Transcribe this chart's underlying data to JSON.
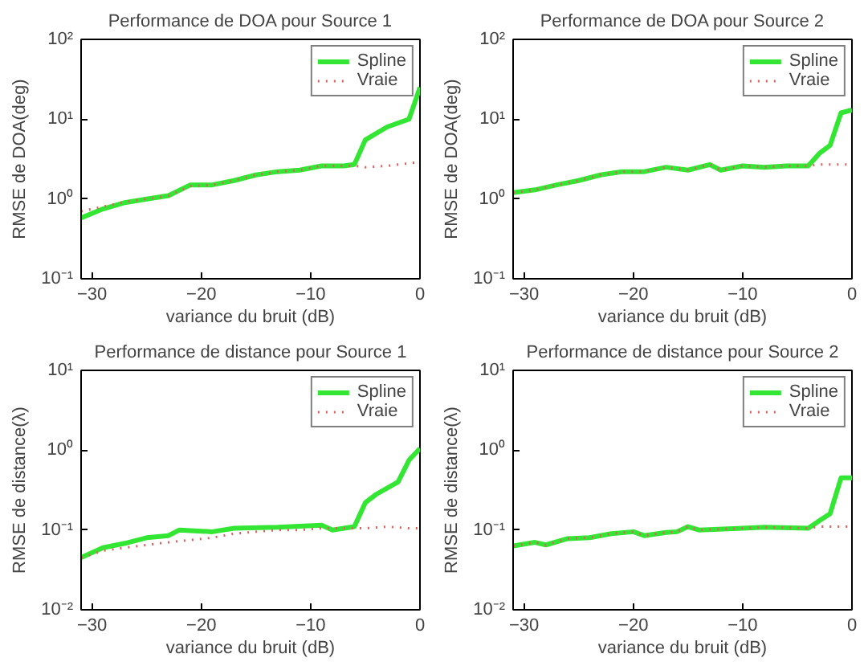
{
  "chart_data": [
    {
      "type": "line",
      "title": "Performance de DOA pour Source 1",
      "xlabel": "variance du bruit (dB)",
      "ylabel": "RMSE de DOA(deg)",
      "log": "y",
      "grid": false,
      "legend": "top right",
      "xlim": [
        -31,
        0
      ],
      "xticks": [
        -30,
        -20,
        -10,
        0
      ],
      "ylim": [
        0.1,
        100
      ],
      "yticks": [
        {
          "value": 0.1,
          "label": "10⁻¹"
        },
        {
          "value": 1,
          "label": "10⁰"
        },
        {
          "value": 10,
          "label": "10¹"
        },
        {
          "value": 100,
          "label": "10²"
        }
      ],
      "series": [
        {
          "name": "Spline",
          "color": "#33e633",
          "line_style": "solid",
          "x": [
            -31,
            -29,
            -27,
            -25,
            -23,
            -21,
            -19,
            -17,
            -15,
            -13,
            -11,
            -9,
            -7,
            -6,
            -5,
            -3,
            -1,
            0
          ],
          "values": [
            0.58,
            0.75,
            0.9,
            1.0,
            1.1,
            1.5,
            1.5,
            1.7,
            2.0,
            2.2,
            2.3,
            2.6,
            2.6,
            2.7,
            5.5,
            8,
            10,
            25
          ]
        },
        {
          "name": "Vraie",
          "color": "#e06060",
          "line_style": "dotted",
          "x": [
            -31,
            -29,
            -27,
            -25,
            -23,
            -21,
            -19,
            -17,
            -15,
            -13,
            -11,
            -9,
            -7,
            -6,
            -5,
            -3,
            -1,
            0
          ],
          "values": [
            0.7,
            0.8,
            0.92,
            1.0,
            1.1,
            1.45,
            1.5,
            1.7,
            2.0,
            2.2,
            2.3,
            2.6,
            2.6,
            2.6,
            2.5,
            2.6,
            2.8,
            2.9
          ]
        }
      ]
    },
    {
      "type": "line",
      "title": "Performance de DOA pour Source 2",
      "xlabel": "variance du bruit (dB)",
      "ylabel": "RMSE de DOA(deg)",
      "log": "y",
      "grid": false,
      "legend": "top right",
      "xlim": [
        -31,
        0
      ],
      "xticks": [
        -30,
        -20,
        -10,
        0
      ],
      "ylim": [
        0.1,
        100
      ],
      "yticks": [
        {
          "value": 0.1,
          "label": "10⁻¹"
        },
        {
          "value": 1,
          "label": "10⁰"
        },
        {
          "value": 10,
          "label": "10¹"
        },
        {
          "value": 100,
          "label": "10²"
        }
      ],
      "series": [
        {
          "name": "Spline",
          "color": "#33e633",
          "line_style": "solid",
          "x": [
            -31,
            -29,
            -27,
            -25,
            -23,
            -21,
            -19,
            -17,
            -15,
            -13,
            -12,
            -10,
            -8,
            -6,
            -4,
            -3,
            -2,
            -1,
            0
          ],
          "values": [
            1.2,
            1.3,
            1.5,
            1.7,
            2.0,
            2.2,
            2.2,
            2.5,
            2.3,
            2.7,
            2.3,
            2.6,
            2.5,
            2.6,
            2.6,
            3.7,
            4.7,
            12,
            13
          ]
        },
        {
          "name": "Vraie",
          "color": "#e06060",
          "line_style": "dotted",
          "x": [
            -31,
            -29,
            -27,
            -25,
            -23,
            -21,
            -19,
            -17,
            -15,
            -13,
            -12,
            -10,
            -8,
            -6,
            -4,
            -3,
            -1,
            0
          ],
          "values": [
            1.2,
            1.3,
            1.5,
            1.7,
            2.0,
            2.2,
            2.2,
            2.5,
            2.3,
            2.7,
            2.3,
            2.6,
            2.5,
            2.6,
            2.6,
            2.7,
            2.7,
            2.7
          ]
        }
      ]
    },
    {
      "type": "line",
      "title": "Performance de distance pour Source 1",
      "xlabel": "variance du bruit (dB)",
      "ylabel": "RMSE de distance(λ)",
      "log": "y",
      "grid": false,
      "legend": "top right",
      "xlim": [
        -31,
        0
      ],
      "xticks": [
        -30,
        -20,
        -10,
        0
      ],
      "ylim": [
        0.01,
        10
      ],
      "yticks": [
        {
          "value": 0.01,
          "label": "10⁻²"
        },
        {
          "value": 0.1,
          "label": "10⁻¹"
        },
        {
          "value": 1,
          "label": "10⁰"
        },
        {
          "value": 10,
          "label": "10¹"
        }
      ],
      "series": [
        {
          "name": "Spline",
          "color": "#33e633",
          "line_style": "solid",
          "x": [
            -31,
            -29,
            -27,
            -25,
            -23,
            -22,
            -19,
            -17,
            -13,
            -9,
            -8,
            -6,
            -5,
            -4,
            -2,
            -1,
            0
          ],
          "values": [
            0.045,
            0.06,
            0.068,
            0.08,
            0.085,
            0.1,
            0.095,
            0.105,
            0.108,
            0.115,
            0.1,
            0.11,
            0.22,
            0.28,
            0.4,
            0.75,
            1.05
          ]
        },
        {
          "name": "Vraie",
          "color": "#e06060",
          "line_style": "dotted",
          "x": [
            -31,
            -29,
            -27,
            -25,
            -23,
            -21,
            -19,
            -17,
            -15,
            -13,
            -11,
            -9,
            -7,
            -5,
            -3,
            -1,
            0
          ],
          "values": [
            0.045,
            0.055,
            0.06,
            0.065,
            0.07,
            0.075,
            0.08,
            0.09,
            0.095,
            0.1,
            0.1,
            0.105,
            0.105,
            0.105,
            0.11,
            0.105,
            0.105
          ]
        }
      ]
    },
    {
      "type": "line",
      "title": "Performance de distance pour Source 2",
      "xlabel": "variance du bruit (dB)",
      "ylabel": "RMSE de distance(λ)",
      "log": "y",
      "grid": false,
      "legend": "top right",
      "xlim": [
        -31,
        0
      ],
      "xticks": [
        -30,
        -20,
        -10,
        0
      ],
      "ylim": [
        0.01,
        10
      ],
      "yticks": [
        {
          "value": 0.01,
          "label": "10⁻²"
        },
        {
          "value": 0.1,
          "label": "10⁻¹"
        },
        {
          "value": 1,
          "label": "10⁰"
        },
        {
          "value": 10,
          "label": "10¹"
        }
      ],
      "series": [
        {
          "name": "Spline",
          "color": "#33e633",
          "line_style": "solid",
          "x": [
            -31,
            -29,
            -28,
            -26,
            -24,
            -22,
            -20,
            -19,
            -17,
            -16,
            -15,
            -14,
            -10,
            -8,
            -4,
            -3,
            -2,
            -1,
            0
          ],
          "values": [
            0.063,
            0.07,
            0.065,
            0.078,
            0.08,
            0.09,
            0.095,
            0.085,
            0.093,
            0.095,
            0.11,
            0.1,
            0.105,
            0.108,
            0.105,
            0.13,
            0.16,
            0.45,
            0.45
          ]
        },
        {
          "name": "Vraie",
          "color": "#e06060",
          "line_style": "dotted",
          "x": [
            -31,
            -29,
            -28,
            -26,
            -24,
            -22,
            -20,
            -19,
            -17,
            -16,
            -15,
            -14,
            -10,
            -8,
            -4,
            -3,
            -1,
            0
          ],
          "values": [
            0.063,
            0.07,
            0.065,
            0.078,
            0.08,
            0.09,
            0.095,
            0.085,
            0.093,
            0.095,
            0.11,
            0.1,
            0.105,
            0.108,
            0.105,
            0.11,
            0.11,
            0.11
          ]
        }
      ]
    }
  ]
}
